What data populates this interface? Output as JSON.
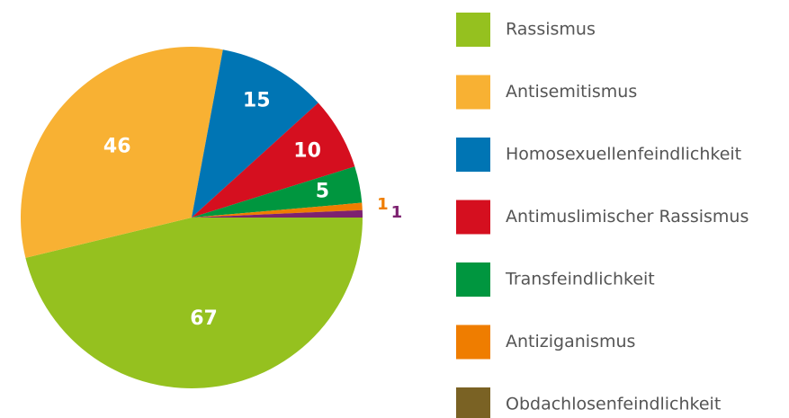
{
  "chart_data": {
    "type": "pie",
    "categories": [
      "Rassismus",
      "Antisemitismus",
      "Homosexuellenfeindlichkeit",
      "Antimuslimischer Rassismus",
      "Transfeindlichkeit",
      "Antiziganismus",
      "Obdachlosenfeindlichkeit",
      null
    ],
    "values": [
      67,
      46,
      15,
      10,
      5,
      1,
      0,
      1
    ],
    "colors": [
      "#95c11f",
      "#f8b133",
      "#0075b4",
      "#d50f1f",
      "#00963f",
      "#ef7d00",
      "#7a6224",
      "#7d2270"
    ]
  }
}
